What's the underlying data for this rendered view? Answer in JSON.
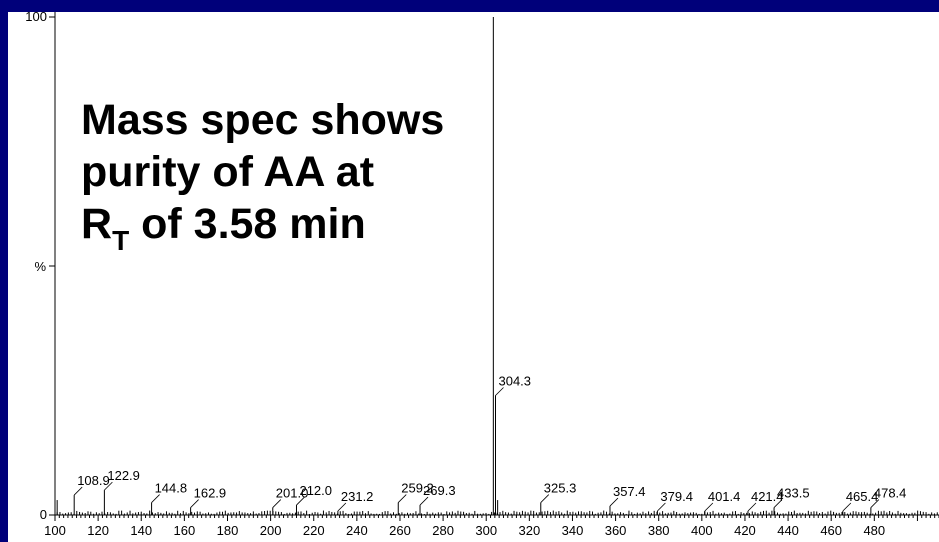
{
  "colors": {
    "background": "#00007a",
    "plot": "#ffffff",
    "ink": "#000000"
  },
  "annotation": {
    "line1": "Mass spec shows",
    "line2": "purity of AA at",
    "line3_main": "R",
    "line3_sub": "T",
    "line3_rest": " of 3.58 min"
  },
  "chart_data": {
    "type": "bar",
    "ylabel": "%",
    "xlim": [
      100,
      510
    ],
    "ylim": [
      0,
      100
    ],
    "y_ticks": [
      {
        "value": 0,
        "label": "0"
      },
      {
        "value": 100,
        "label": "100"
      }
    ],
    "x_ticks": [
      100,
      120,
      140,
      160,
      180,
      200,
      220,
      240,
      260,
      280,
      300,
      320,
      340,
      360,
      380,
      400,
      420,
      440,
      460,
      480
    ],
    "grid": false,
    "peaks": [
      {
        "mz": 303.3,
        "intensity": 100
      },
      {
        "mz": 304.3,
        "intensity": 24,
        "label": "304.3"
      },
      {
        "mz": 305.3,
        "intensity": 3
      },
      {
        "mz": 108.9,
        "intensity": 4,
        "label": "108.9"
      },
      {
        "mz": 122.9,
        "intensity": 5,
        "label": "122.9"
      },
      {
        "mz": 144.8,
        "intensity": 2.5,
        "label": "144.8"
      },
      {
        "mz": 162.9,
        "intensity": 1.5,
        "label": "162.9"
      },
      {
        "mz": 201.0,
        "intensity": 1.5,
        "label": "201.0"
      },
      {
        "mz": 212.0,
        "intensity": 2,
        "label": "212.0"
      },
      {
        "mz": 231.2,
        "intensity": 0.8,
        "label": "231.2"
      },
      {
        "mz": 259.2,
        "intensity": 2.5,
        "label": "259.2"
      },
      {
        "mz": 269.3,
        "intensity": 2,
        "label": "269.3"
      },
      {
        "mz": 325.3,
        "intensity": 2.5,
        "label": "325.3"
      },
      {
        "mz": 357.4,
        "intensity": 1.8,
        "label": "357.4"
      },
      {
        "mz": 379.4,
        "intensity": 0.8,
        "label": "379.4"
      },
      {
        "mz": 401.4,
        "intensity": 0.8,
        "label": "401.4"
      },
      {
        "mz": 421.4,
        "intensity": 0.8,
        "label": "421.4"
      },
      {
        "mz": 433.5,
        "intensity": 1.5,
        "label": "433.5"
      },
      {
        "mz": 465.4,
        "intensity": 0.8,
        "label": "465.4"
      },
      {
        "mz": 478.4,
        "intensity": 1.5,
        "label": "478.4"
      },
      {
        "mz": 101,
        "intensity": 3
      }
    ]
  }
}
